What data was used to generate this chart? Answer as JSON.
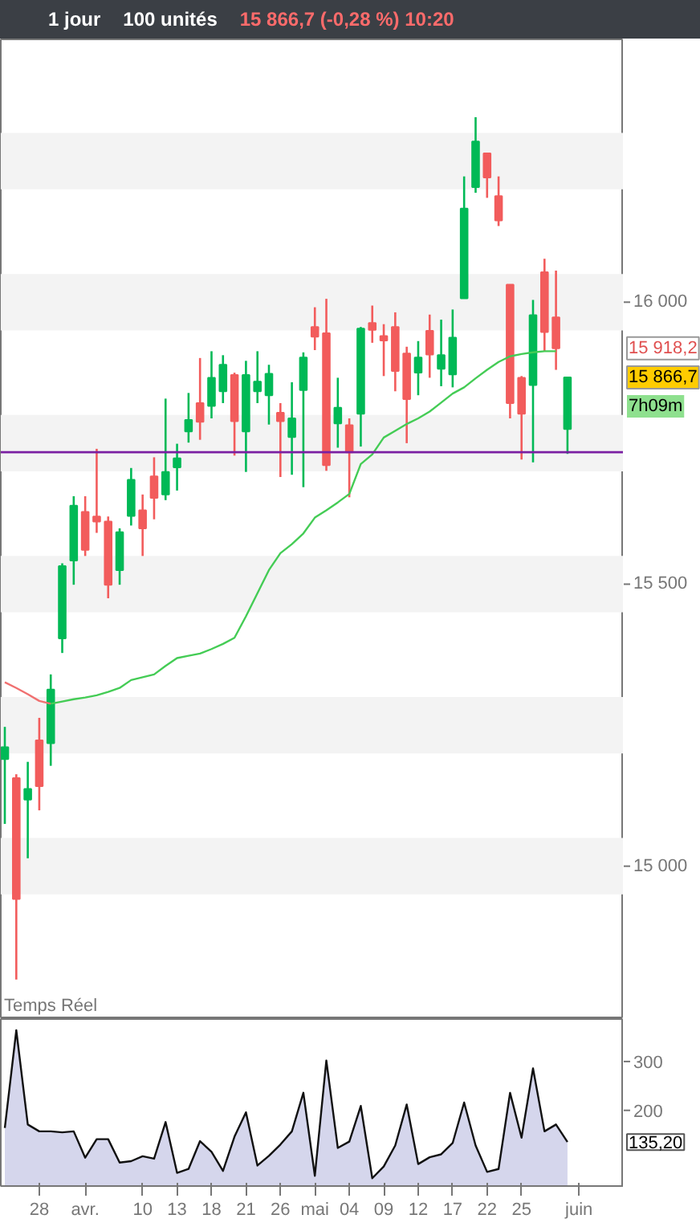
{
  "chart_data": [
    {
      "type": "candlestick",
      "categories": [
        null,
        null,
        null,
        "28",
        null,
        null,
        null,
        "avr.",
        null,
        null,
        null,
        null,
        "10",
        null,
        null,
        "13",
        null,
        null,
        "18",
        null,
        null,
        "21",
        null,
        null,
        "26",
        null,
        null,
        "mai",
        null,
        null,
        "04",
        null,
        null,
        "09",
        null,
        null,
        "12",
        null,
        null,
        "17",
        null,
        null,
        "22",
        null,
        null,
        "25",
        null,
        null,
        null,
        null,
        "juin"
      ],
      "ohlc": [
        [
          15190,
          15247,
          15075,
          15211
        ],
        [
          15156,
          15163,
          14799,
          14942
        ],
        [
          15118,
          15185,
          15014,
          15137
        ],
        [
          15223,
          15263,
          15099,
          15142
        ],
        [
          15218,
          15340,
          15178,
          15313
        ],
        [
          15404,
          15537,
          15378,
          15532
        ],
        [
          15542,
          15656,
          15499,
          15639
        ],
        [
          15628,
          15656,
          15550,
          15561
        ],
        [
          15620,
          15740,
          15591,
          15611
        ],
        [
          15611,
          15620,
          15475,
          15499
        ],
        [
          15525,
          15599,
          15499,
          15592
        ],
        [
          15621,
          15706,
          15604,
          15685
        ],
        [
          15631,
          15659,
          15550,
          15599
        ],
        [
          15691,
          15725,
          15615,
          15653
        ],
        [
          15659,
          15829,
          15649,
          15699
        ],
        [
          15707,
          15749,
          15666,
          15723
        ],
        [
          15771,
          15839,
          15751,
          15791
        ],
        [
          15821,
          15901,
          15756,
          15788
        ],
        [
          15816,
          15913,
          15794,
          15866
        ],
        [
          15842,
          15906,
          15821,
          15889
        ],
        [
          15871,
          15875,
          15728,
          15789
        ],
        [
          15771,
          15896,
          15699,
          15871
        ],
        [
          15842,
          15913,
          15821,
          15859
        ],
        [
          15835,
          15889,
          15783,
          15873
        ],
        [
          15804,
          15821,
          15690,
          15789
        ],
        [
          15761,
          15858,
          15694,
          15794
        ],
        [
          15844,
          15911,
          15672,
          15902
        ],
        [
          15956,
          15991,
          15915,
          15939
        ],
        [
          15945,
          16006,
          15701,
          15711
        ],
        [
          15785,
          15866,
          15742,
          15813
        ],
        [
          15782,
          15794,
          15654,
          15734
        ],
        [
          15802,
          15956,
          15744,
          15953
        ],
        [
          15963,
          15994,
          15928,
          15951
        ],
        [
          15940,
          15961,
          15869,
          15932
        ],
        [
          15956,
          15982,
          15842,
          15878
        ],
        [
          15909,
          15921,
          15750,
          15828
        ],
        [
          15875,
          15931,
          15835,
          15902
        ],
        [
          15949,
          15978,
          15866,
          15907
        ],
        [
          15882,
          15969,
          15851,
          15906
        ],
        [
          15872,
          15987,
          15849,
          15937
        ],
        [
          16007,
          16223,
          16007,
          16166
        ],
        [
          16204,
          16328,
          16194,
          16285
        ],
        [
          16264,
          16264,
          16185,
          16221
        ],
        [
          16188,
          16223,
          16135,
          16145
        ],
        [
          16031,
          16031,
          15794,
          15821
        ],
        [
          15866,
          15869,
          15721,
          15802
        ],
        [
          15853,
          16004,
          15716,
          15977
        ],
        [
          16053,
          16077,
          15913,
          15947
        ],
        [
          15973,
          16056,
          15880,
          15918.2
        ],
        [
          15775,
          15866.7,
          15731,
          15866.7
        ],
        null
      ],
      "colors": [
        "#00b956",
        "#f25c5c",
        "#00b956",
        "#f25c5c",
        "#00b956",
        "#00b956",
        "#00b956",
        "#f25c5c",
        "#f25c5c",
        "#f25c5c",
        "#00b956",
        "#00b956",
        "#f25c5c",
        "#f25c5c",
        "#00b956",
        "#00b956",
        "#00b956",
        "#f25c5c",
        "#00b956",
        "#00b956",
        "#f25c5c",
        "#00b956",
        "#00b956",
        "#00b956",
        "#f25c5c",
        "#00b956",
        "#00b956",
        "#f25c5c",
        "#f25c5c",
        "#00b956",
        "#f25c5c",
        "#00b956",
        "#f25c5c",
        "#f25c5c",
        "#f25c5c",
        "#f25c5c",
        "#00b956",
        "#f25c5c",
        "#00b956",
        "#00b956",
        "#00b956",
        "#00b956",
        "#f25c5c",
        "#f25c5c",
        "#f25c5c",
        "#f25c5c",
        "#00b956",
        "#f25c5c",
        "#f25c5c",
        "#00b956",
        null
      ],
      "series": [
        {
          "type": "line",
          "color": "#f07070",
          "values": [
            15326,
            15316,
            15305,
            15293,
            15288,
            null,
            null,
            null,
            null,
            null,
            null,
            null,
            null,
            null,
            null,
            null,
            null,
            null,
            null,
            null,
            null,
            null,
            null,
            null,
            null,
            null,
            null,
            null,
            null,
            null,
            null,
            null,
            null,
            null,
            null,
            null,
            null,
            null,
            null,
            null,
            null,
            null,
            null,
            null,
            null,
            null,
            null,
            null,
            null,
            null,
            null
          ]
        },
        {
          "type": "line",
          "color": "#44cc55",
          "values": [
            null,
            null,
            null,
            null,
            15288,
            15292,
            15296,
            15299,
            15303,
            15309,
            15316,
            15330,
            15335,
            15340,
            15355,
            15369,
            15373,
            15377,
            15385,
            15394,
            15405,
            15443,
            15484,
            15525,
            15555,
            15571,
            15590,
            15618,
            15631,
            15645,
            15660,
            15713,
            15730,
            15760,
            15772,
            15784,
            15794,
            15806,
            15822,
            15838,
            15849,
            15865,
            15880,
            15894,
            15904,
            15908,
            15911,
            15913,
            15913,
            null,
            null
          ]
        }
      ],
      "ylim": [
        14729,
        16466
      ],
      "yticks": [
        {
          "value": 15000,
          "label": "15 000"
        },
        {
          "value": 15500,
          "label": "15 500"
        },
        {
          "value": 16000,
          "label": "16 000"
        }
      ],
      "bands": [
        {
          "axis": "y",
          "from": 14950,
          "to": 15050,
          "color": "#f3f3f3"
        },
        {
          "axis": "y",
          "from": 15200,
          "to": 15300,
          "color": "#f3f3f3"
        },
        {
          "axis": "y",
          "from": 15450,
          "to": 15550,
          "color": "#f3f3f3"
        },
        {
          "axis": "y",
          "from": 15700,
          "to": 15800,
          "color": "#f3f3f3"
        },
        {
          "axis": "y",
          "from": 15950,
          "to": 16050,
          "color": "#f3f3f3"
        },
        {
          "axis": "y",
          "from": 16200,
          "to": 16300,
          "color": "#f3f3f3"
        }
      ],
      "ref_lines": [
        {
          "axis": "y",
          "value": 15734,
          "color": "#7a1fa2",
          "line_style": "solid"
        }
      ],
      "annotations": [
        "1 jour",
        "100 unités",
        "15 866,7 (-0,28 %) 10:20",
        "Temps Réel",
        "15 918,2",
        "15 866,7",
        "7h09m"
      ],
      "tick_labels": "y",
      "grid": false
    },
    {
      "type": "area",
      "categories": [
        null,
        null,
        null,
        "28",
        null,
        null,
        null,
        "avr.",
        null,
        null,
        null,
        null,
        "10",
        null,
        null,
        "13",
        null,
        null,
        "18",
        null,
        null,
        "21",
        null,
        null,
        "26",
        null,
        null,
        "mai",
        null,
        null,
        "04",
        null,
        null,
        "09",
        null,
        null,
        "12",
        null,
        null,
        "17",
        null,
        null,
        "22",
        null,
        null,
        "25",
        null,
        null,
        null,
        null,
        "juin"
      ],
      "series": [
        {
          "color": "#d5d6ec",
          "values": [
            164,
            364,
            171,
            157,
            157,
            155,
            157,
            103,
            141,
            141,
            93,
            96,
            106,
            101,
            176,
            72,
            80,
            137,
            115,
            76,
            146,
            196,
            87,
            107,
            130,
            157,
            236,
            66,
            302,
            123,
            136,
            209,
            61,
            85,
            128,
            212,
            90,
            104,
            110,
            133,
            216,
            128,
            74,
            80,
            236,
            144,
            286,
            157,
            171,
            135.2,
            null
          ]
        }
      ],
      "ylim": [
        45,
        387
      ],
      "yticks": [
        200,
        300
      ],
      "annotations": [
        "135,20"
      ],
      "grid": false
    }
  ]
}
